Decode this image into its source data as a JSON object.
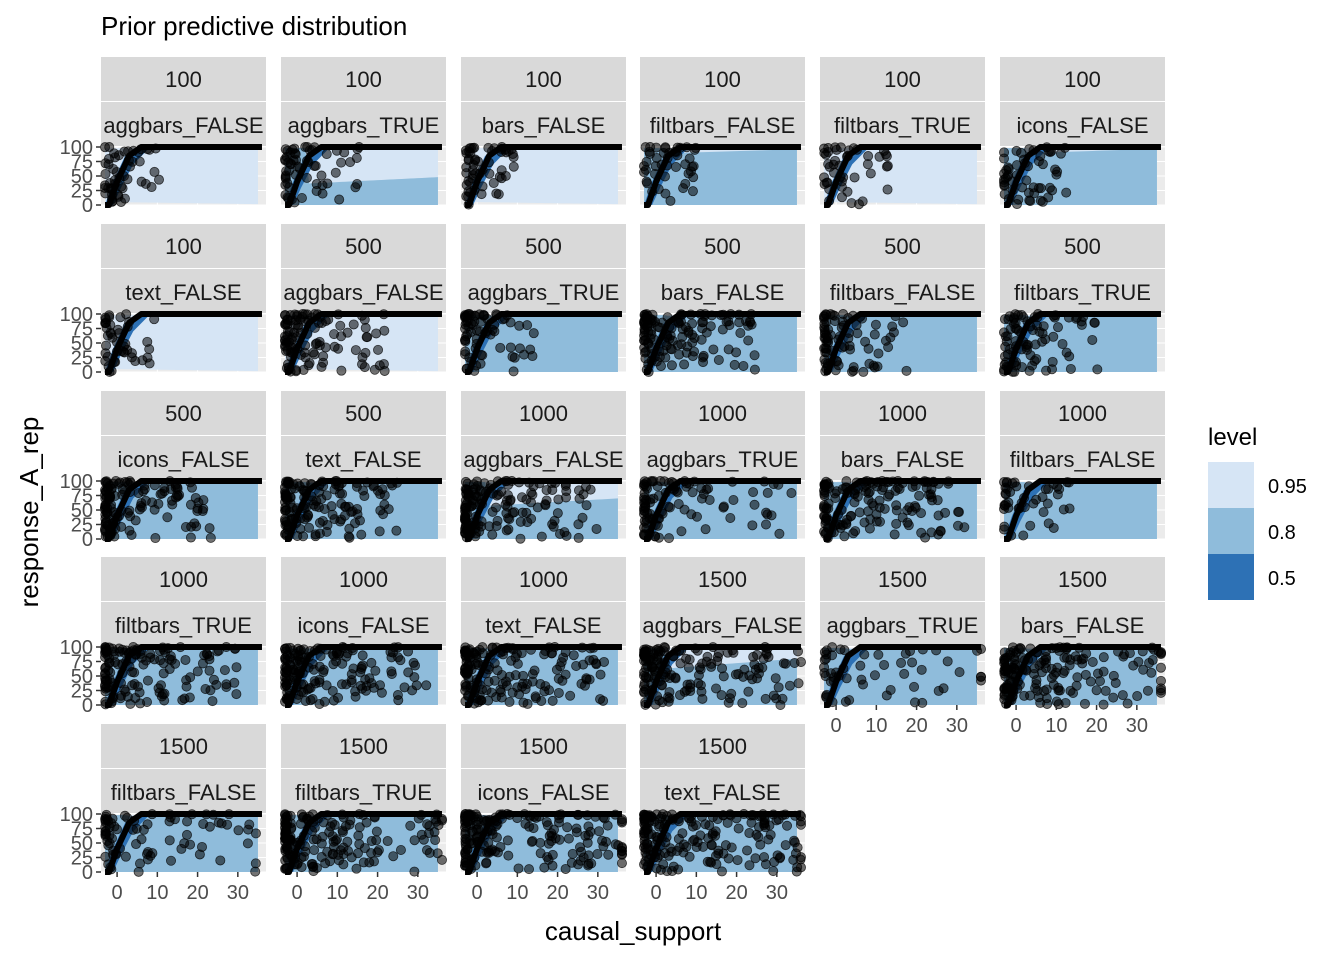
{
  "chart_data": {
    "type": "area",
    "title": "Prior predictive distribution",
    "xlabel": "causal_support",
    "ylabel": "response_A_rep",
    "x_ticks": [
      0,
      10,
      20,
      30
    ],
    "y_ticks": [
      0,
      25,
      50,
      75,
      100
    ],
    "xlim": [
      -4,
      37
    ],
    "ylim": [
      0,
      100
    ],
    "grid": true,
    "legend": {
      "title": "level",
      "position": "right",
      "entries": [
        {
          "label": "0.95",
          "color": "#d6e5f5"
        },
        {
          "label": "0.8",
          "color": "#8fbcdb"
        },
        {
          "label": "0.5",
          "color": "#2d71b5"
        }
      ]
    },
    "colors": {
      "panel_bg": "#ebebeb",
      "strip_bg": "#d9d9d9",
      "grid": "#ffffff",
      "interval_95": "#d6e5f5",
      "interval_80": "#8fbcdb",
      "interval_50": "#2d71b5",
      "median_line": "#000000",
      "points": "#000000"
    },
    "panels": [
      {
        "n": "100",
        "cond": "aggbars_FALSE",
        "hi80": [
          0,
          0,
          0
        ],
        "lo95": 5,
        "pts": 50,
        "spread": 4
      },
      {
        "n": "100",
        "cond": "aggbars_TRUE",
        "hi80": [
          35,
          40,
          48
        ],
        "lo95": 4,
        "pts": 60,
        "spread": 6
      },
      {
        "n": "100",
        "cond": "bars_FALSE",
        "hi80": [
          0,
          0,
          0
        ],
        "lo95": 5,
        "pts": 55,
        "spread": 4
      },
      {
        "n": "100",
        "cond": "filtbars_FALSE",
        "hi80": [
          88,
          92,
          96
        ],
        "lo95": 0,
        "pts": 45,
        "spread": 4
      },
      {
        "n": "100",
        "cond": "filtbars_TRUE",
        "hi80": [
          0,
          0,
          0
        ],
        "lo95": 5,
        "pts": 45,
        "spread": 5
      },
      {
        "n": "100",
        "cond": "icons_FALSE",
        "hi80": [
          88,
          93,
          97
        ],
        "lo95": 0,
        "pts": 55,
        "spread": 5
      },
      {
        "n": "100",
        "cond": "text_FALSE",
        "hi80": [
          0,
          0,
          0
        ],
        "lo95": 5,
        "pts": 45,
        "spread": 4
      },
      {
        "n": "500",
        "cond": "aggbars_FALSE",
        "hi80": [
          0,
          0,
          0
        ],
        "lo95": 5,
        "pts": 110,
        "spread": 9
      },
      {
        "n": "500",
        "cond": "aggbars_TRUE",
        "hi80": [
          96,
          97,
          98
        ],
        "lo95": 0,
        "pts": 70,
        "spread": 6
      },
      {
        "n": "500",
        "cond": "bars_FALSE",
        "hi80": [
          96,
          97,
          98
        ],
        "lo95": 0,
        "pts": 130,
        "spread": 10
      },
      {
        "n": "500",
        "cond": "filtbars_FALSE",
        "hi80": [
          96,
          97,
          98
        ],
        "lo95": 0,
        "pts": 80,
        "spread": 7
      },
      {
        "n": "500",
        "cond": "filtbars_TRUE",
        "hi80": [
          96,
          97,
          98
        ],
        "lo95": 0,
        "pts": 85,
        "spread": 8
      },
      {
        "n": "500",
        "cond": "icons_FALSE",
        "hi80": [
          96,
          97,
          98
        ],
        "lo95": 0,
        "pts": 130,
        "spread": 10
      },
      {
        "n": "500",
        "cond": "text_FALSE",
        "hi80": [
          96,
          97,
          98
        ],
        "lo95": 0,
        "pts": 140,
        "spread": 10
      },
      {
        "n": "1000",
        "cond": "aggbars_FALSE",
        "hi80": [
          55,
          62,
          70
        ],
        "lo95": 3,
        "pts": 150,
        "spread": 12
      },
      {
        "n": "1000",
        "cond": "aggbars_TRUE",
        "hi80": [
          96,
          97,
          98
        ],
        "lo95": 0,
        "pts": 100,
        "spread": 14
      },
      {
        "n": "1000",
        "cond": "bars_FALSE",
        "hi80": [
          96,
          97,
          98
        ],
        "lo95": 0,
        "pts": 150,
        "spread": 13
      },
      {
        "n": "1000",
        "cond": "filtbars_FALSE",
        "hi80": [
          96,
          97,
          98
        ],
        "lo95": 0,
        "pts": 45,
        "spread": 6
      },
      {
        "n": "1000",
        "cond": "filtbars_TRUE",
        "hi80": [
          96,
          97,
          98
        ],
        "lo95": 0,
        "pts": 140,
        "spread": 12
      },
      {
        "n": "1000",
        "cond": "icons_FALSE",
        "hi80": [
          96,
          97,
          98
        ],
        "lo95": 0,
        "pts": 160,
        "spread": 13
      },
      {
        "n": "1000",
        "cond": "text_FALSE",
        "hi80": [
          96,
          97,
          98
        ],
        "lo95": 0,
        "pts": 160,
        "spread": 13
      },
      {
        "n": "1500",
        "cond": "aggbars_FALSE",
        "hi80": [
          60,
          70,
          80
        ],
        "lo95": 3,
        "pts": 160,
        "spread": 15
      },
      {
        "n": "1500",
        "cond": "aggbars_TRUE",
        "hi80": [
          96,
          97,
          98
        ],
        "lo95": 0,
        "pts": 55,
        "spread": 16
      },
      {
        "n": "1500",
        "cond": "bars_FALSE",
        "hi80": [
          96,
          97,
          98
        ],
        "lo95": 0,
        "pts": 170,
        "spread": 16
      },
      {
        "n": "1500",
        "cond": "filtbars_FALSE",
        "hi80": [
          96,
          97,
          98
        ],
        "lo95": 0,
        "pts": 80,
        "spread": 14
      },
      {
        "n": "1500",
        "cond": "filtbars_TRUE",
        "hi80": [
          96,
          97,
          98
        ],
        "lo95": 0,
        "pts": 170,
        "spread": 16
      },
      {
        "n": "1500",
        "cond": "icons_FALSE",
        "hi80": [
          96,
          97,
          98
        ],
        "lo95": 0,
        "pts": 180,
        "spread": 16
      },
      {
        "n": "1500",
        "cond": "text_FALSE",
        "hi80": [
          96,
          97,
          98
        ],
        "lo95": 0,
        "pts": 190,
        "spread": 16
      }
    ]
  }
}
